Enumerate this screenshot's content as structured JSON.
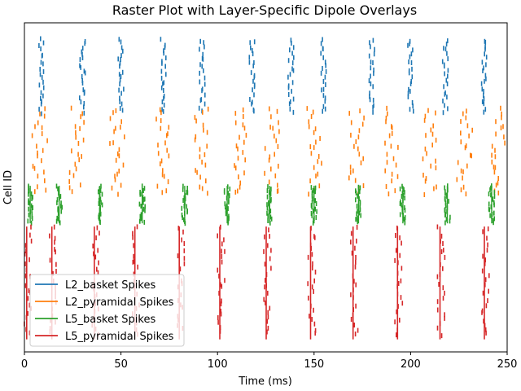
{
  "chart_data": {
    "type": "scatter",
    "title": "Raster Plot with Layer-Specific Dipole Overlays",
    "xlabel": "Time (ms)",
    "ylabel": "Cell ID",
    "xlim": [
      0,
      250
    ],
    "xticks": [
      0,
      50,
      100,
      150,
      200,
      250
    ],
    "y_ticks_shown": false,
    "grid": false,
    "legend_position": "lower-left",
    "series": [
      {
        "name": "L2_basket Spikes",
        "color": "#1f77b4",
        "y_range": [
          3.8,
          5.0
        ],
        "burst_times": [
          9,
          30,
          50,
          72,
          92,
          118,
          138,
          155,
          180,
          200,
          218,
          238
        ]
      },
      {
        "name": "L2_pyramidal Spikes",
        "color": "#ff7f0e",
        "y_range": [
          2.5,
          3.9
        ],
        "burst_times": [
          8,
          27,
          48,
          72,
          92,
          112,
          128,
          150,
          172,
          190,
          210,
          228,
          245
        ]
      },
      {
        "name": "L5_basket Spikes",
        "color": "#2ca02c",
        "y_range": [
          2.05,
          2.65
        ],
        "burst_times": [
          3,
          18,
          39,
          61,
          83,
          105,
          127,
          150,
          173,
          196,
          219,
          242
        ]
      },
      {
        "name": "L5_pyramidal Spikes",
        "color": "#d62728",
        "y_range": [
          0.25,
          2.0
        ],
        "burst_times": [
          1,
          14,
          36,
          57,
          80,
          101,
          125,
          148,
          170,
          193,
          215,
          238
        ]
      }
    ]
  }
}
